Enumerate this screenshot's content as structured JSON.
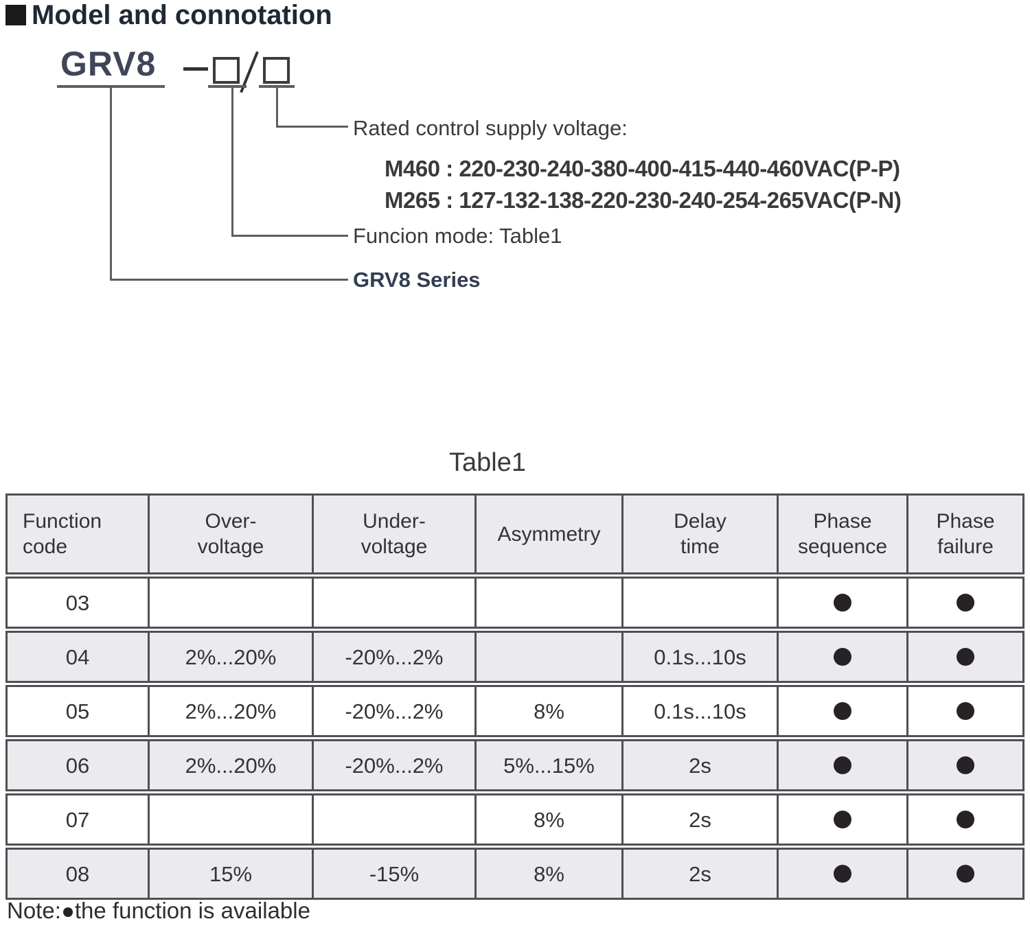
{
  "header": {
    "title": "Model and connotation"
  },
  "model_diagram": {
    "series_code": "GRV8",
    "rated_label": "Rated control supply voltage:",
    "rated_options": [
      "M460 : 220-230-240-380-400-415-440-460VAC(P-P)",
      "M265 : 127-132-138-220-230-240-254-265VAC(P-N)"
    ],
    "function_mode_label": "Funcion mode: Table1",
    "series_label": "GRV8 Series"
  },
  "table": {
    "title": "Table1",
    "headers": {
      "function_code": "Function\ncode",
      "over_voltage": "Over-\nvoltage",
      "under_voltage": "Under-\nvoltage",
      "asymmetry": "Asymmetry",
      "delay_time": "Delay\ntime",
      "phase_sequence": "Phase\nsequence",
      "phase_failure": "Phase\nfailure"
    },
    "rows": [
      {
        "code": "03",
        "over": "",
        "under": "",
        "asym": "",
        "delay": "",
        "phase_sequence": true,
        "phase_failure": true
      },
      {
        "code": "04",
        "over": "2%...20%",
        "under": "-20%...2%",
        "asym": "",
        "delay": "0.1s...10s",
        "phase_sequence": true,
        "phase_failure": true
      },
      {
        "code": "05",
        "over": "2%...20%",
        "under": "-20%...2%",
        "asym": "8%",
        "delay": "0.1s...10s",
        "phase_sequence": true,
        "phase_failure": true
      },
      {
        "code": "06",
        "over": "2%...20%",
        "under": "-20%...2%",
        "asym": "5%...15%",
        "delay": "2s",
        "phase_sequence": true,
        "phase_failure": true
      },
      {
        "code": "07",
        "over": "",
        "under": "",
        "asym": "8%",
        "delay": "2s",
        "phase_sequence": true,
        "phase_failure": true
      },
      {
        "code": "08",
        "over": "15%",
        "under": "-15%",
        "asym": "8%",
        "delay": "2s",
        "phase_sequence": true,
        "phase_failure": true
      }
    ]
  },
  "note": {
    "prefix": "Note:",
    "text": "the function is available"
  },
  "colors": {
    "line": "#5e5e5e",
    "table_border": "#4f4f55",
    "shaded_row": "#ebebed",
    "dot": "#262226",
    "title_text": "#1e2836",
    "series_text": "#3e4657"
  }
}
